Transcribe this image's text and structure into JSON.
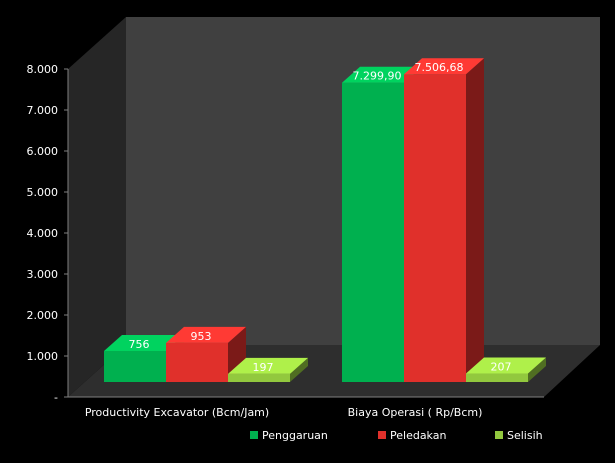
{
  "chart_data": {
    "type": "bar",
    "categories": [
      "Productivity Excavator (Bcm/Jam)",
      "Biaya Operasi ( Rp/Bcm)"
    ],
    "series": [
      {
        "name": "Penggaruan",
        "values": [
          756,
          7299.9
        ],
        "labels": [
          "756",
          "7.299,90"
        ],
        "color": "#00b04f"
      },
      {
        "name": "Peledakan",
        "values": [
          953,
          7506.68
        ],
        "labels": [
          "953",
          "7.506,68"
        ],
        "color": "#e0302b"
      },
      {
        "name": "Selisih",
        "values": [
          197,
          207
        ],
        "labels": [
          "197",
          "207"
        ],
        "color": "#92c83e"
      }
    ],
    "y_ticks": [
      {
        "value": 0,
        "label": "-"
      },
      {
        "value": 1000,
        "label": "1.000"
      },
      {
        "value": 2000,
        "label": "2.000"
      },
      {
        "value": 3000,
        "label": "3.000"
      },
      {
        "value": 4000,
        "label": "4.000"
      },
      {
        "value": 5000,
        "label": "5.000"
      },
      {
        "value": 6000,
        "label": "6.000"
      },
      {
        "value": 7000,
        "label": "7.000"
      },
      {
        "value": 8000,
        "label": "8.000"
      }
    ],
    "ylim": [
      0,
      8000
    ],
    "title": "",
    "xlabel": "",
    "ylabel": "",
    "legend_position": "bottom-right",
    "grid": false,
    "style": "3d-column",
    "background_color": "#000000",
    "wall_color": "#404040",
    "floor_color": "#2e2e2e"
  }
}
